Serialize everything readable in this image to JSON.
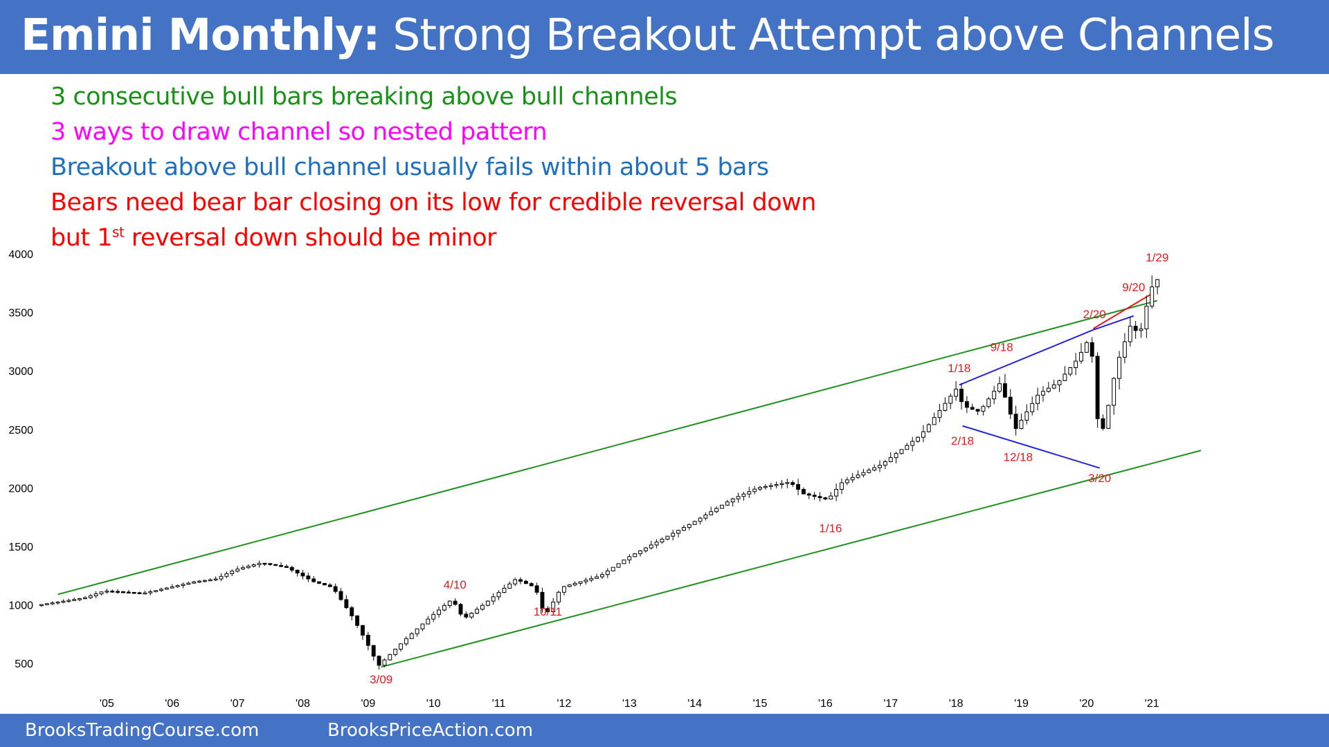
{
  "header": {
    "title_bold": "Emini Monthly:",
    "title_rest": "Strong Breakout Attempt above Channels",
    "background": "#4472c4"
  },
  "notes": [
    {
      "text": "3 consecutive bull bars breaking above bull channels",
      "color": "#179217"
    },
    {
      "text": "3 ways to draw channel so nested pattern",
      "color": "#ff00ff"
    },
    {
      "text": "Breakout above bull channel usually fails within about 5 bars",
      "color": "#1f6fc1"
    },
    {
      "text": "Bears need bear bar closing on its low for credible reversal down",
      "color": "#ff0000"
    },
    {
      "text_before": "but 1",
      "superscript": "st",
      "text_after": " reversal down should be minor",
      "color": "#ff0000"
    }
  ],
  "footer": {
    "left": "BrooksTradingCourse.com",
    "right": "BrooksPriceAction.com"
  },
  "chart_data": {
    "type": "candlestick",
    "title": "",
    "x_range": [
      2004.0,
      2021.75
    ],
    "ylim": [
      200,
      4000
    ],
    "y_ticks": [
      500,
      1000,
      1500,
      2000,
      2500,
      3000,
      3500,
      4000
    ],
    "x_ticks": [
      {
        "label": "'05",
        "x": 2005.0
      },
      {
        "label": "'06",
        "x": 2006.0
      },
      {
        "label": "'07",
        "x": 2007.0
      },
      {
        "label": "'08",
        "x": 2008.0
      },
      {
        "label": "'09",
        "x": 2009.0
      },
      {
        "label": "'10",
        "x": 2010.0
      },
      {
        "label": "'11",
        "x": 2011.0
      },
      {
        "label": "'12",
        "x": 2012.0
      },
      {
        "label": "'13",
        "x": 2013.0
      },
      {
        "label": "'14",
        "x": 2014.0
      },
      {
        "label": "'15",
        "x": 2015.0
      },
      {
        "label": "'16",
        "x": 2016.0
      },
      {
        "label": "'17",
        "x": 2017.0
      },
      {
        "label": "'18",
        "x": 2018.0
      },
      {
        "label": "'19",
        "x": 2019.0
      },
      {
        "label": "'20",
        "x": 2020.0
      },
      {
        "label": "'21",
        "x": 2021.0
      }
    ],
    "price_path": [
      [
        2004.0,
        1000
      ],
      [
        2004.7,
        1060
      ],
      [
        2005.0,
        1120
      ],
      [
        2005.6,
        1100
      ],
      [
        2006.0,
        1150
      ],
      [
        2006.4,
        1200
      ],
      [
        2006.7,
        1220
      ],
      [
        2007.0,
        1300
      ],
      [
        2007.4,
        1360
      ],
      [
        2007.8,
        1320
      ],
      [
        2008.2,
        1200
      ],
      [
        2008.5,
        1150
      ],
      [
        2008.8,
        900
      ],
      [
        2009.0,
        700
      ],
      [
        2009.2,
        480
      ],
      [
        2009.6,
        700
      ],
      [
        2010.0,
        900
      ],
      [
        2010.33,
        1050
      ],
      [
        2010.5,
        880
      ],
      [
        2010.8,
        1000
      ],
      [
        2011.3,
        1220
      ],
      [
        2011.6,
        1150
      ],
      [
        2011.75,
        900
      ],
      [
        2012.0,
        1150
      ],
      [
        2012.6,
        1250
      ],
      [
        2013.0,
        1400
      ],
      [
        2013.6,
        1580
      ],
      [
        2014.0,
        1700
      ],
      [
        2014.6,
        1900
      ],
      [
        2015.0,
        2000
      ],
      [
        2015.5,
        2050
      ],
      [
        2015.7,
        1950
      ],
      [
        2016.08,
        1900
      ],
      [
        2016.3,
        2050
      ],
      [
        2016.9,
        2200
      ],
      [
        2017.5,
        2450
      ],
      [
        2018.05,
        2850
      ],
      [
        2018.15,
        2700
      ],
      [
        2018.4,
        2650
      ],
      [
        2018.72,
        2900
      ],
      [
        2018.95,
        2500
      ],
      [
        2019.3,
        2800
      ],
      [
        2019.6,
        2900
      ],
      [
        2019.9,
        3100
      ],
      [
        2020.1,
        3300
      ],
      [
        2020.2,
        2600
      ],
      [
        2020.3,
        2500
      ],
      [
        2020.5,
        3050
      ],
      [
        2020.72,
        3400
      ],
      [
        2020.85,
        3300
      ],
      [
        2021.0,
        3650
      ],
      [
        2021.08,
        3780
      ]
    ],
    "lines": [
      {
        "name": "upper-channel",
        "color": "#1f8f1f",
        "points": [
          [
            2004.25,
            1090
          ],
          [
            2021.08,
            3600
          ]
        ]
      },
      {
        "name": "lower-channel",
        "color": "#1f8f1f",
        "points": [
          [
            2009.2,
            470
          ],
          [
            2021.75,
            2320
          ]
        ]
      },
      {
        "name": "upper-blue",
        "color": "#2222dd",
        "points": [
          [
            2018.05,
            2880
          ],
          [
            2020.1,
            3350
          ]
        ]
      },
      {
        "name": "upper-blue-extension",
        "color": "#2222dd",
        "points": [
          [
            2020.1,
            3350
          ],
          [
            2020.72,
            3470
          ]
        ]
      },
      {
        "name": "lower-blue",
        "color": "#2222dd",
        "points": [
          [
            2018.1,
            2530
          ],
          [
            2020.2,
            2170
          ]
        ]
      },
      {
        "name": "red-line",
        "color": "#e31a1c",
        "points": [
          [
            2020.1,
            3360
          ],
          [
            2021.0,
            3660
          ]
        ]
      }
    ],
    "annotations": [
      {
        "text": "1/18",
        "x": 2018.05,
        "y": 2990
      },
      {
        "text": "9/18",
        "x": 2018.7,
        "y": 3170
      },
      {
        "text": "2/18",
        "x": 2018.1,
        "y": 2370
      },
      {
        "text": "12/18",
        "x": 2018.95,
        "y": 2230
      },
      {
        "text": "2/20",
        "x": 2020.12,
        "y": 3450
      },
      {
        "text": "9/20",
        "x": 2020.72,
        "y": 3680
      },
      {
        "text": "1/29",
        "x": 2021.08,
        "y": 3935
      },
      {
        "text": "3/20",
        "x": 2020.2,
        "y": 2050
      },
      {
        "text": "1/16",
        "x": 2016.08,
        "y": 1620
      },
      {
        "text": "10/11",
        "x": 2011.75,
        "y": 910
      },
      {
        "text": "4/10",
        "x": 2010.33,
        "y": 1140
      },
      {
        "text": "3/09",
        "x": 2009.2,
        "y": 330
      }
    ]
  }
}
